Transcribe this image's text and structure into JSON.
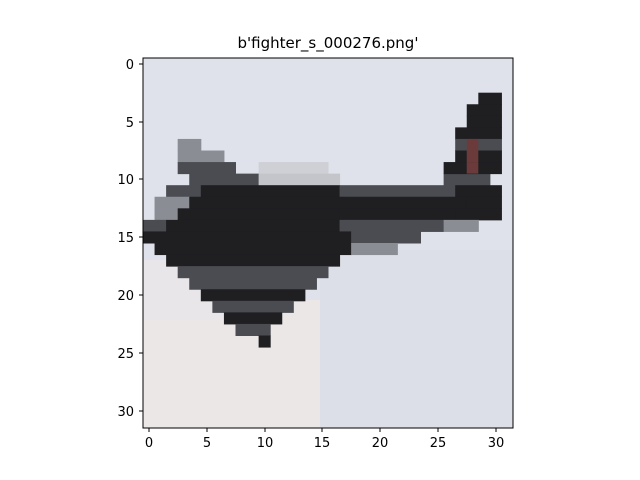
{
  "figure": {
    "title": "b'fighter_s_000276.png'"
  },
  "image": {
    "description": "Low-resolution 32x32 pixelated photo of a dark fighter jet banking against a pale blue-grey sky",
    "sky_color": "#dfe2ea",
    "sky_light_color": "#eceaea",
    "aircraft_dark": "#1f1f22",
    "aircraft_mid": "#4a4c52",
    "aircraft_light": "#8b8d95",
    "tail_accent": "#6b3a3a",
    "pixel_grid": 32
  },
  "axes": {
    "x_ticks": [
      "0",
      "5",
      "10",
      "15",
      "20",
      "25",
      "30"
    ],
    "y_ticks": [
      "0",
      "5",
      "10",
      "15",
      "20",
      "25",
      "30"
    ]
  }
}
